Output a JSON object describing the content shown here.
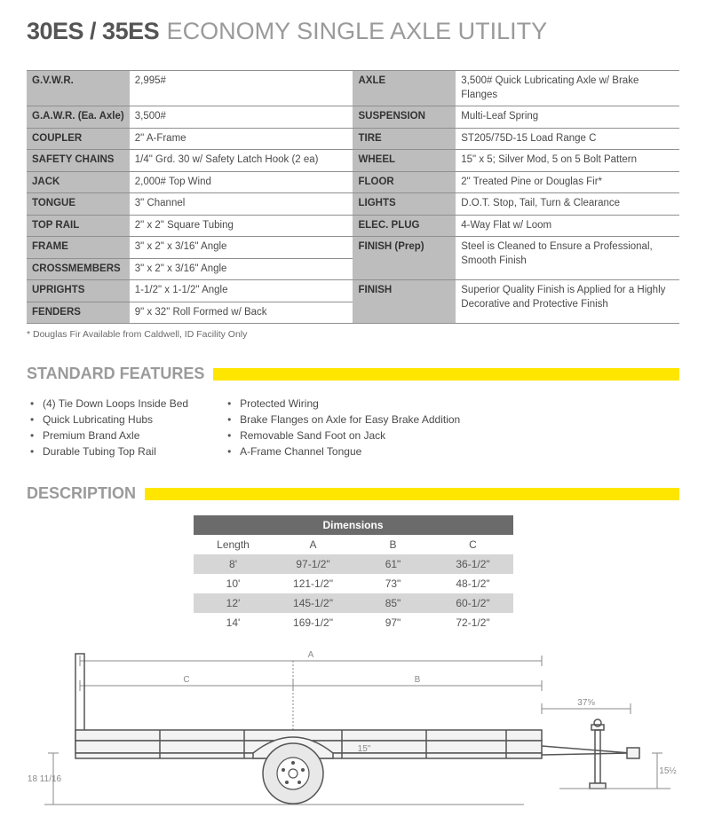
{
  "title": {
    "model": "30ES / 35ES",
    "desc": "ECONOMY SINGLE AXLE UTILITY"
  },
  "specs": {
    "left": [
      {
        "label": "G.V.W.R.",
        "value": "2,995#"
      },
      {
        "label": "G.A.W.R. (Ea. Axle)",
        "value": "3,500#"
      },
      {
        "label": "COUPLER",
        "value": "2\" A-Frame"
      },
      {
        "label": "SAFETY CHAINS",
        "value": "1/4\" Grd. 30 w/ Safety Latch Hook (2 ea)"
      },
      {
        "label": "JACK",
        "value": "2,000# Top Wind"
      },
      {
        "label": "TONGUE",
        "value": "3\" Channel"
      },
      {
        "label": "TOP RAIL",
        "value": "2\" x 2\" Square Tubing"
      },
      {
        "label": "FRAME",
        "value": "3\" x 2\" x 3/16\" Angle"
      },
      {
        "label": "CROSSMEMBERS",
        "value": "3\" x 2\" x 3/16\" Angle"
      },
      {
        "label": "UPRIGHTS",
        "value": "1-1/2\" x 1-1/2\" Angle"
      },
      {
        "label": "FENDERS",
        "value": "9\" x 32\" Roll Formed w/ Back"
      }
    ],
    "right": [
      {
        "label": "AXLE",
        "value": "3,500# Quick Lubricating Axle w/ Brake Flanges"
      },
      {
        "label": "SUSPENSION",
        "value": "Multi-Leaf Spring"
      },
      {
        "label": "TIRE",
        "value": "ST205/75D-15 Load Range C"
      },
      {
        "label": "WHEEL",
        "value": "15\" x 5; Silver Mod, 5 on 5 Bolt Pattern"
      },
      {
        "label": "FLOOR",
        "value": "2\" Treated Pine or Douglas Fir*"
      },
      {
        "label": "LIGHTS",
        "value": "D.O.T. Stop, Tail, Turn & Clearance"
      },
      {
        "label": "ELEC. PLUG",
        "value": "4-Way Flat w/ Loom"
      },
      {
        "label": "FINISH (Prep)",
        "value": "Steel is Cleaned to Ensure a Professional, Smooth Finish"
      },
      {
        "label": "FINISH",
        "value": "Superior Quality Finish is Applied for a Highly Decorative and Protective Finish"
      }
    ],
    "footnote": "* Douglas Fir Available from Caldwell, ID Facility Only"
  },
  "sections": {
    "features": "STANDARD FEATURES",
    "description": "DESCRIPTION"
  },
  "features": {
    "left": [
      "(4) Tie Down Loops Inside Bed",
      "Quick Lubricating Hubs",
      "Premium Brand Axle",
      "Durable Tubing Top Rail"
    ],
    "right": [
      "Protected Wiring",
      "Brake Flanges on Axle for Easy Brake Addition",
      "Removable Sand Foot on Jack",
      "A-Frame Channel Tongue"
    ]
  },
  "dimensions": {
    "header": "Dimensions",
    "columns": [
      "Length",
      "A",
      "B",
      "C"
    ],
    "rows": [
      [
        "8'",
        "97-1/2\"",
        "61\"",
        "36-1/2\""
      ],
      [
        "10'",
        "121-1/2\"",
        "73\"",
        "48-1/2\""
      ],
      [
        "12'",
        "145-1/2\"",
        "85\"",
        "60-1/2\""
      ],
      [
        "14'",
        "169-1/2\"",
        "97\"",
        "72-1/2\""
      ]
    ]
  },
  "diagram": {
    "labels": {
      "A": "A",
      "B": "B",
      "C": "C",
      "wheel": "15\"",
      "right": "37⅝",
      "leftH": "18 11/16",
      "rightH": "15½"
    },
    "colors": {
      "stroke": "#555555",
      "dim": "#8a8a8a",
      "fill": "#f0f0f0",
      "yellow": "#ffe600"
    }
  }
}
